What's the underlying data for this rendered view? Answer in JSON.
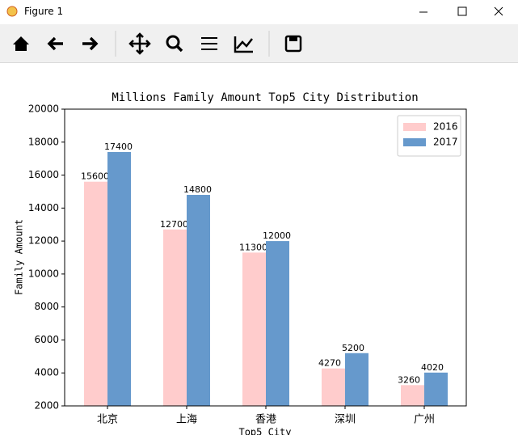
{
  "window": {
    "title": "Figure 1"
  },
  "chart_data": {
    "type": "bar",
    "title": "Millions Family Amount Top5 City Distribution",
    "x_label": "Top5 City",
    "y_label": "Family Amount",
    "categories": [
      "北京",
      "上海",
      "香港",
      "深圳",
      "广州"
    ],
    "series": [
      {
        "name": "2016",
        "color": "#ffcccc",
        "values": [
          15600,
          12700,
          11300,
          4270,
          3260
        ]
      },
      {
        "name": "2017",
        "color": "#6699cc",
        "values": [
          17400,
          14800,
          12000,
          5200,
          4020
        ]
      }
    ],
    "ylim": [
      2000,
      20000
    ],
    "yticks": [
      2000,
      4000,
      6000,
      8000,
      10000,
      12000,
      14000,
      16000,
      18000,
      20000
    ],
    "grid": false,
    "legend": "upper right"
  }
}
